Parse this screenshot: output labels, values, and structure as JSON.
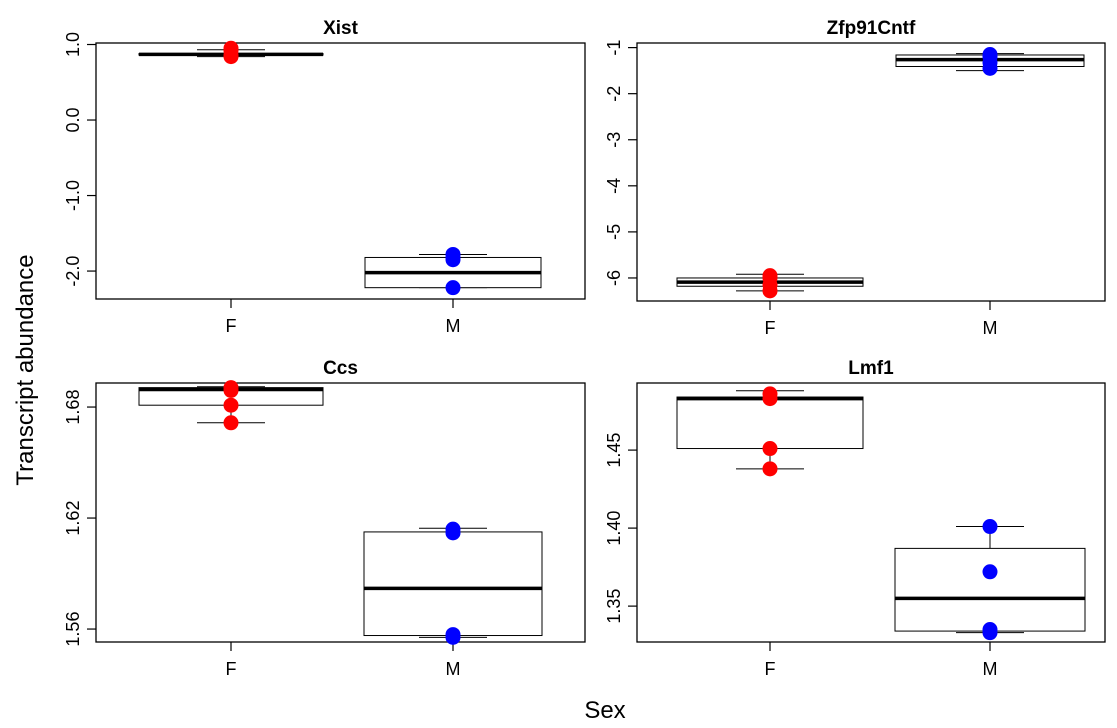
{
  "chart_data": {
    "type": "boxplot",
    "ylabel": "Transcript abundance",
    "xlabel": "Sex",
    "panels": [
      {
        "title": "Xist",
        "categories": [
          "F",
          "M"
        ],
        "yticks": [
          "-2.0",
          "-1.0",
          "0.0",
          "1.0"
        ],
        "ylim": [
          -2.37,
          1.02
        ],
        "colors": [
          "#ff0000",
          "#0000ff"
        ],
        "groups": [
          {
            "name": "F",
            "min": 0.84,
            "q1": 0.86,
            "median": 0.87,
            "q3": 0.88,
            "max": 0.93,
            "points": [
              0.84,
              0.86,
              0.92,
              0.95
            ]
          },
          {
            "name": "M",
            "min": -2.22,
            "q1": -2.22,
            "median": -2.02,
            "q3": -1.82,
            "max": -1.78,
            "points": [
              -2.22,
              -1.82,
              -1.85,
              -1.78
            ]
          }
        ]
      },
      {
        "title": "Zfp91Cntf",
        "categories": [
          "F",
          "M"
        ],
        "yticks": [
          "-6",
          "-5",
          "-4",
          "-3",
          "-2",
          "-1"
        ],
        "ylim": [
          -6.5,
          -0.9
        ],
        "colors": [
          "#ff0000",
          "#0000ff"
        ],
        "groups": [
          {
            "name": "F",
            "min": -6.28,
            "q1": -6.18,
            "median": -6.09,
            "q3": -6.0,
            "max": -5.92,
            "points": [
              -6.28,
              -6.15,
              -6.0,
              -5.95
            ]
          },
          {
            "name": "M",
            "min": -1.5,
            "q1": -1.41,
            "median": -1.26,
            "q3": -1.16,
            "max": -1.13,
            "points": [
              -1.45,
              -1.33,
              -1.2,
              -1.15
            ]
          }
        ]
      },
      {
        "title": "Ccs",
        "categories": [
          "F",
          "M"
        ],
        "yticks": [
          "1.56",
          "1.62",
          "1.68"
        ],
        "ylim": [
          1.553,
          1.693
        ],
        "colors": [
          "#ff0000",
          "#0000ff"
        ],
        "groups": [
          {
            "name": "F",
            "min": 1.6715,
            "q1": 1.681,
            "median": 1.6895,
            "q3": 1.6905,
            "max": 1.691,
            "points": [
              1.6715,
              1.681,
              1.689,
              1.6905
            ]
          },
          {
            "name": "M",
            "min": 1.5555,
            "q1": 1.5565,
            "median": 1.582,
            "q3": 1.6125,
            "max": 1.6145,
            "points": [
              1.5555,
              1.557,
              1.612,
              1.614
            ]
          }
        ]
      },
      {
        "title": "Lmf1",
        "categories": [
          "F",
          "M"
        ],
        "yticks": [
          "1.35",
          "1.40",
          "1.45"
        ],
        "ylim": [
          1.327,
          1.493
        ],
        "colors": [
          "#ff0000",
          "#0000ff"
        ],
        "groups": [
          {
            "name": "F",
            "min": 1.438,
            "q1": 1.451,
            "median": 1.483,
            "q3": 1.484,
            "max": 1.488,
            "points": [
              1.438,
              1.451,
              1.483,
              1.486
            ]
          },
          {
            "name": "M",
            "min": 1.333,
            "q1": 1.334,
            "median": 1.355,
            "q3": 1.387,
            "max": 1.401,
            "points": [
              1.333,
              1.335,
              1.372,
              1.401
            ]
          }
        ]
      }
    ]
  }
}
